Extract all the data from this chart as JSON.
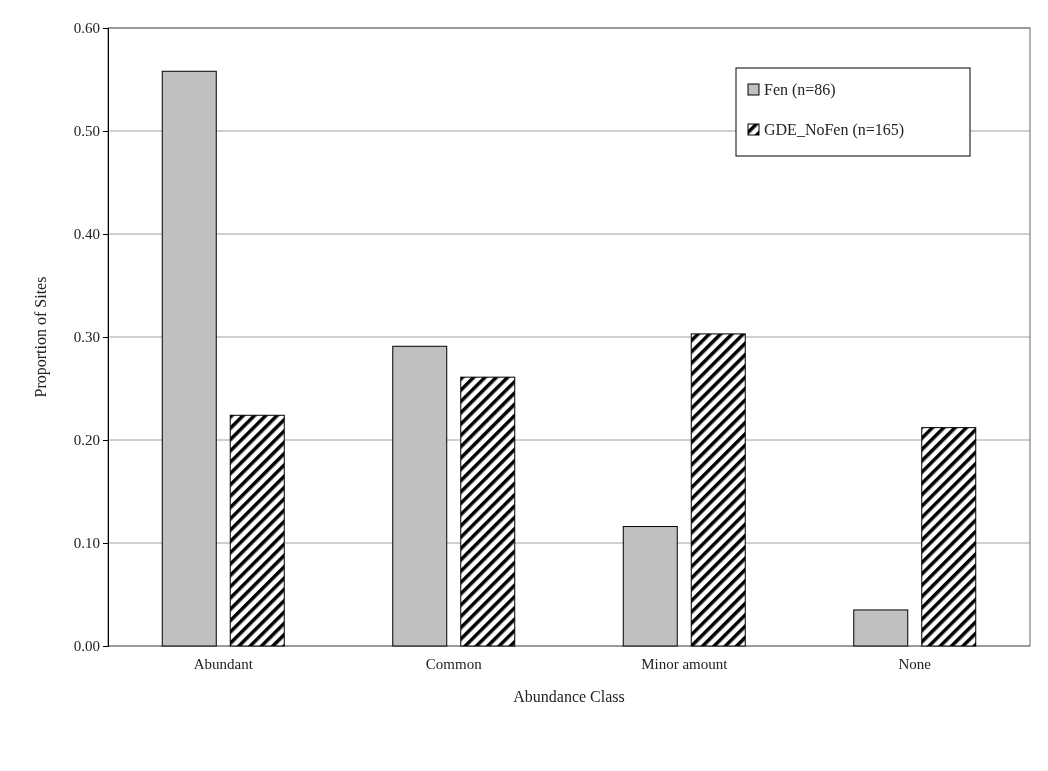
{
  "chart_data": {
    "type": "bar",
    "xlabel": "Abundance Class",
    "ylabel": "Proportion of Sites",
    "categories": [
      "Abundant",
      "Common",
      "Minor amount",
      "None"
    ],
    "series": [
      {
        "name": "Fen (n=86)",
        "color": "#c0c0c0",
        "values": [
          0.558,
          0.291,
          0.116,
          0.035
        ]
      },
      {
        "name": "GDE_NoFen (n=165)",
        "color": "#000000",
        "values": [
          0.224,
          0.261,
          0.303,
          0.212
        ]
      }
    ],
    "ylim": [
      0,
      0.6
    ],
    "yticks": [
      {
        "value": 0,
        "label": "0.00"
      },
      {
        "value": 0.1,
        "label": "0.10"
      },
      {
        "value": 0.2,
        "label": "0.20"
      },
      {
        "value": 0.3,
        "label": "0.30"
      },
      {
        "value": 0.4,
        "label": "0.40"
      },
      {
        "value": 0.5,
        "label": "0.50"
      },
      {
        "value": 0.6,
        "label": "0.60"
      }
    ],
    "grid": "y",
    "legend": "top right"
  }
}
